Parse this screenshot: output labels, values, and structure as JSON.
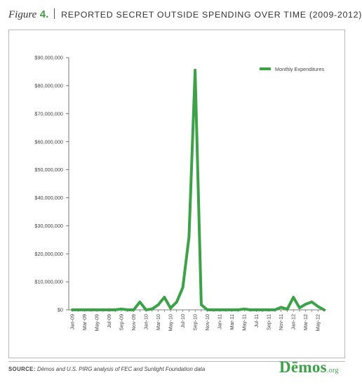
{
  "figure": {
    "label": "Figure",
    "number": "4.",
    "title": "REPORTED SECRET OUTSIDE SPENDING OVER TIME (2009-2012)"
  },
  "footer": {
    "source_label": "SOURCE:",
    "source_text": "Dēmos and U.S. PIRG analysis of FEC and Sunlight Foundation data",
    "logo_text": "Dēmos",
    "logo_suffix": ".org"
  },
  "colors": {
    "accent": "#3aa346",
    "axis": "#555555",
    "text": "#444444"
  },
  "chart_data": {
    "type": "line",
    "title": "",
    "xlabel": "",
    "ylabel": "",
    "ylim": [
      0,
      90000000
    ],
    "yticks": [
      0,
      10000000,
      20000000,
      30000000,
      40000000,
      50000000,
      60000000,
      70000000,
      80000000,
      90000000
    ],
    "ytick_labels": [
      "$0",
      "$10,000,000",
      "$20,000,000",
      "$30,000,000",
      "$40,000,000",
      "$50,000,000",
      "$60,000,000",
      "$70,000,000",
      "$80,000,000",
      "$90,000,000"
    ],
    "grid": false,
    "legend_position": "top-right",
    "categories": [
      "Jan-09",
      "Feb-09",
      "Mar-09",
      "Apr-09",
      "May-09",
      "Jun-09",
      "Jul-09",
      "Aug-09",
      "Sep-09",
      "Oct-09",
      "Nov-09",
      "Dec-09",
      "Jan-10",
      "Feb-10",
      "Mar-10",
      "Apr-10",
      "May-10",
      "Jun-10",
      "Jul-10",
      "Aug-10",
      "Sep-10",
      "Oct-10",
      "Nov-10",
      "Dec-10",
      "Jan-11",
      "Feb-11",
      "Mar-11",
      "Apr-11",
      "May-11",
      "Jun-11",
      "Jul-11",
      "Aug-11",
      "Sep-11",
      "Oct-11",
      "Nov-11",
      "Dec-11",
      "Jan-12",
      "Feb-12",
      "Mar-12",
      "Apr-12",
      "May-12",
      "Jun-12"
    ],
    "tick_labels": [
      "Jan-09",
      "Mar-09",
      "May-09",
      "Jul-09",
      "Sep-09",
      "Nov-09",
      "Jan-10",
      "Mar-10",
      "May-10",
      "Jul-10",
      "Sep-10",
      "Nov-10",
      "Jan-11",
      "Mar-11",
      "May-11",
      "Jul-11",
      "Sep-11",
      "Nov-11",
      "Jan-12",
      "Mar-12",
      "May-12"
    ],
    "series": [
      {
        "name": "Monthly Expenditures",
        "values": [
          0,
          0,
          0,
          0,
          0,
          0,
          0,
          0,
          300000,
          0,
          0,
          2800000,
          0,
          300000,
          1800000,
          4500000,
          600000,
          2800000,
          8000000,
          26000000,
          85500000,
          1800000,
          0,
          0,
          0,
          0,
          0,
          0,
          300000,
          0,
          0,
          0,
          0,
          0,
          900000,
          200000,
          4500000,
          700000,
          2000000,
          2800000,
          1200000,
          0
        ]
      }
    ]
  }
}
